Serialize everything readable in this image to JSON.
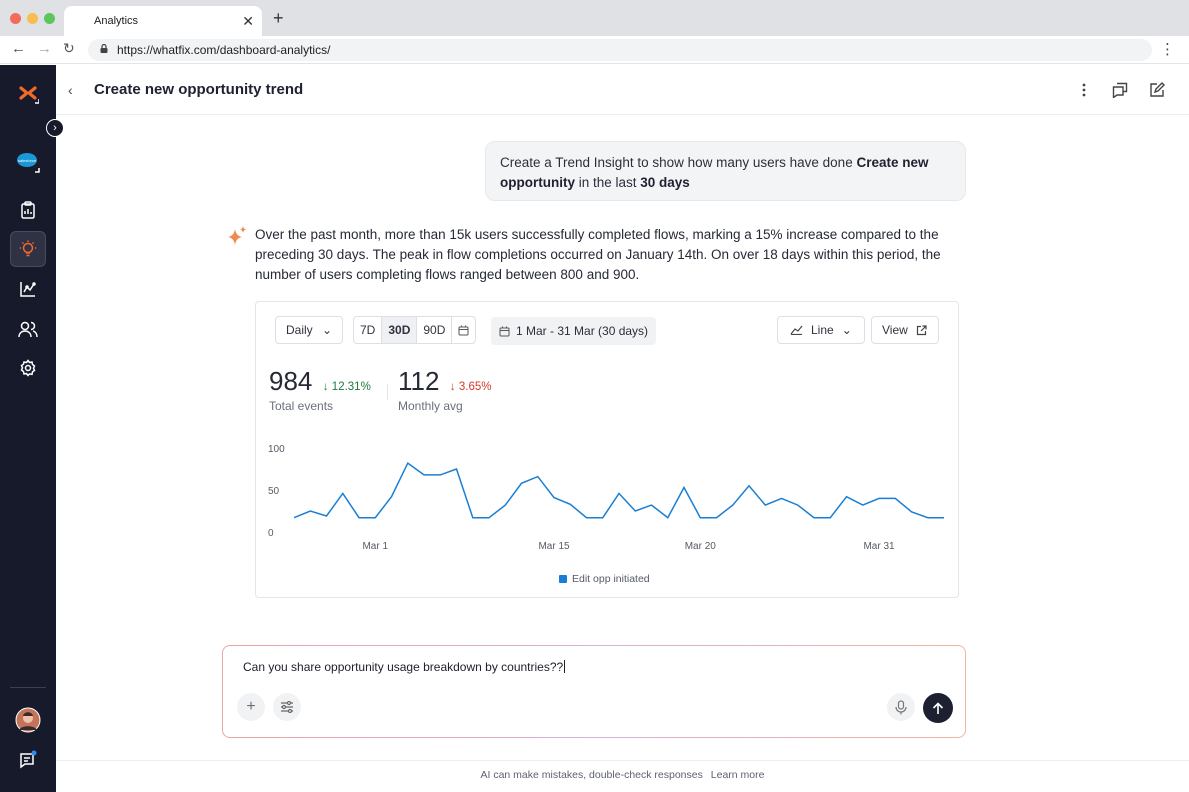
{
  "browser": {
    "tab_title": "Analytics",
    "url": "https://whatfix.com/dashboard-analytics/"
  },
  "sidebar": {
    "items": [
      "salesforce-app",
      "clipboard",
      "insights",
      "trends",
      "users",
      "settings"
    ],
    "active": "insights"
  },
  "header": {
    "title": "Create new opportunity trend"
  },
  "user_message": {
    "prefix": "Create a Trend Insight to show how many users have done ",
    "bold1": "Create new opportunity",
    "middle": " in the last ",
    "bold2": "30 days"
  },
  "ai_response": "Over the past month, more than 15k users successfully completed flows, marking a 15% increase compared to the preceding 30 days. The peak in flow completions occurred on January 14th. On over 18 days within this period, the number of users completing flows ranged between 800 and 900.",
  "chart_card": {
    "granularity": "Daily",
    "ranges": [
      "7D",
      "30D",
      "90D"
    ],
    "selected_range": "30D",
    "date_range": "1 Mar - 31 Mar (30 days)",
    "chart_type": "Line",
    "view_label": "View",
    "metrics": [
      {
        "value": "984",
        "change": "12.31%",
        "direction": "down",
        "color": "#1f7a3a",
        "label": "Total events"
      },
      {
        "value": "112",
        "change": "3.65%",
        "direction": "down",
        "color": "#d1392a",
        "label": "Monthly avg"
      }
    ]
  },
  "chart_data": {
    "type": "line",
    "x_ticks": [
      "Mar 1",
      "Mar 15",
      "Mar 20",
      "Mar 31"
    ],
    "y_ticks": [
      "100",
      "50",
      "0"
    ],
    "ylim": [
      0,
      100
    ],
    "grid": false,
    "legend": "bottom",
    "series": [
      {
        "name": "Edit opp initiated",
        "color": "#1a7fd3",
        "values": [
          17,
          25,
          19,
          46,
          17,
          17,
          42,
          82,
          68,
          68,
          75,
          17,
          17,
          32,
          58,
          66,
          41,
          33,
          17,
          17,
          46,
          25,
          32,
          17,
          53,
          17,
          17,
          32,
          55,
          32,
          40,
          32,
          17,
          17,
          42,
          32,
          40,
          40,
          24,
          17,
          17
        ]
      }
    ]
  },
  "composer": {
    "text": "Can you share opportunity usage breakdown by countries??"
  },
  "footer": {
    "disclaimer": "AI can make mistakes, double-check responses",
    "link": "Learn more"
  }
}
